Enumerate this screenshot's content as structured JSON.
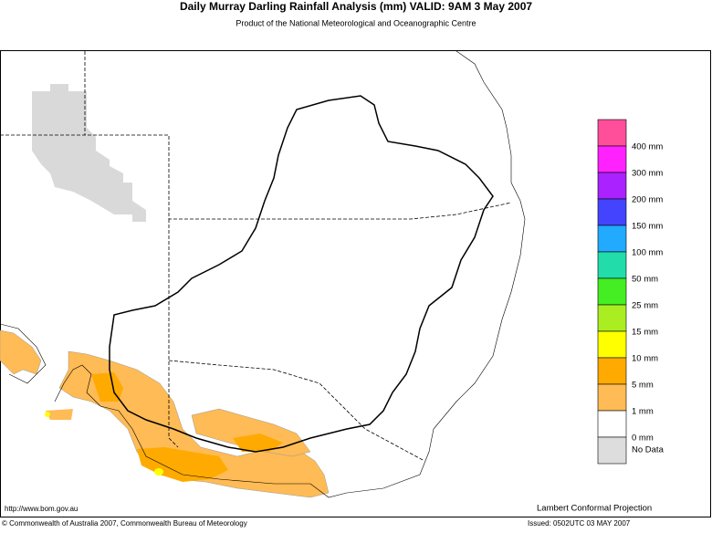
{
  "header": {
    "title": "Daily Murray Darling Rainfall Analysis (mm)  VALID: 9AM  3 May 2007",
    "subtitle": "Product of the National Meteorological and Oceanographic Centre"
  },
  "legend": {
    "colors": [
      "#ff4f9a",
      "#ff22ff",
      "#aa22ff",
      "#4444ff",
      "#22aaff",
      "#22ddaa",
      "#44ee22",
      "#aaee22",
      "#ffff00",
      "#ffaa00",
      "#ffbb55",
      "#ffffff",
      "#dddddd"
    ],
    "labels": [
      "400 mm",
      "300 mm",
      "200 mm",
      "150 mm",
      "100 mm",
      "50 mm",
      "25 mm",
      "15 mm",
      "10 mm",
      "5 mm",
      "1 mm",
      "0 mm",
      "No Data"
    ]
  },
  "footer": {
    "url": "http://www.bom.gov.au",
    "projection": "Lambert Conformal Projection",
    "copyright": "© Commonwealth of Australia 2007, Commonwealth Bureau of Meteorology",
    "issued": "Issued: 0502UTC 03 MAY 2007"
  }
}
